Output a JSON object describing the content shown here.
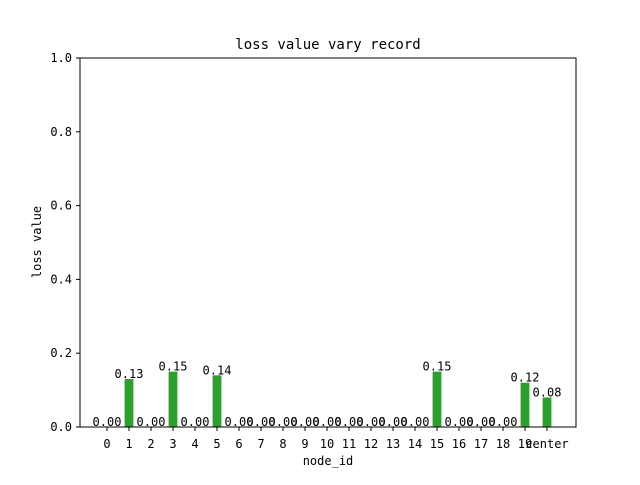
{
  "chart_data": {
    "type": "bar",
    "title": "loss value vary record",
    "xlabel": "node_id",
    "ylabel": "loss value",
    "categories": [
      "0",
      "1",
      "2",
      "3",
      "4",
      "5",
      "6",
      "7",
      "8",
      "9",
      "10",
      "11",
      "12",
      "13",
      "14",
      "15",
      "16",
      "17",
      "18",
      "19",
      "center"
    ],
    "values": [
      0.0,
      0.13,
      0.0,
      0.15,
      0.0,
      0.14,
      0.0,
      0.0,
      0.0,
      0.0,
      0.0,
      0.0,
      0.0,
      0.0,
      0.0,
      0.15,
      0.0,
      0.0,
      0.0,
      0.12,
      0.08
    ],
    "value_labels": [
      "0.00",
      "0.13",
      "0.00",
      "0.15",
      "0.00",
      "0.14",
      "0.00",
      "0.00",
      "0.00",
      "0.00",
      "0.00",
      "0.00",
      "0.00",
      "0.00",
      "0.00",
      "0.15",
      "0.00",
      "0.00",
      "0.00",
      "0.12",
      "0.08"
    ],
    "ylim": [
      0,
      1.0
    ],
    "yticks": [
      "0.0",
      "0.2",
      "0.4",
      "0.6",
      "0.8",
      "1.0"
    ],
    "bar_color": "#2ca02c",
    "grid": false,
    "legend": "none"
  }
}
